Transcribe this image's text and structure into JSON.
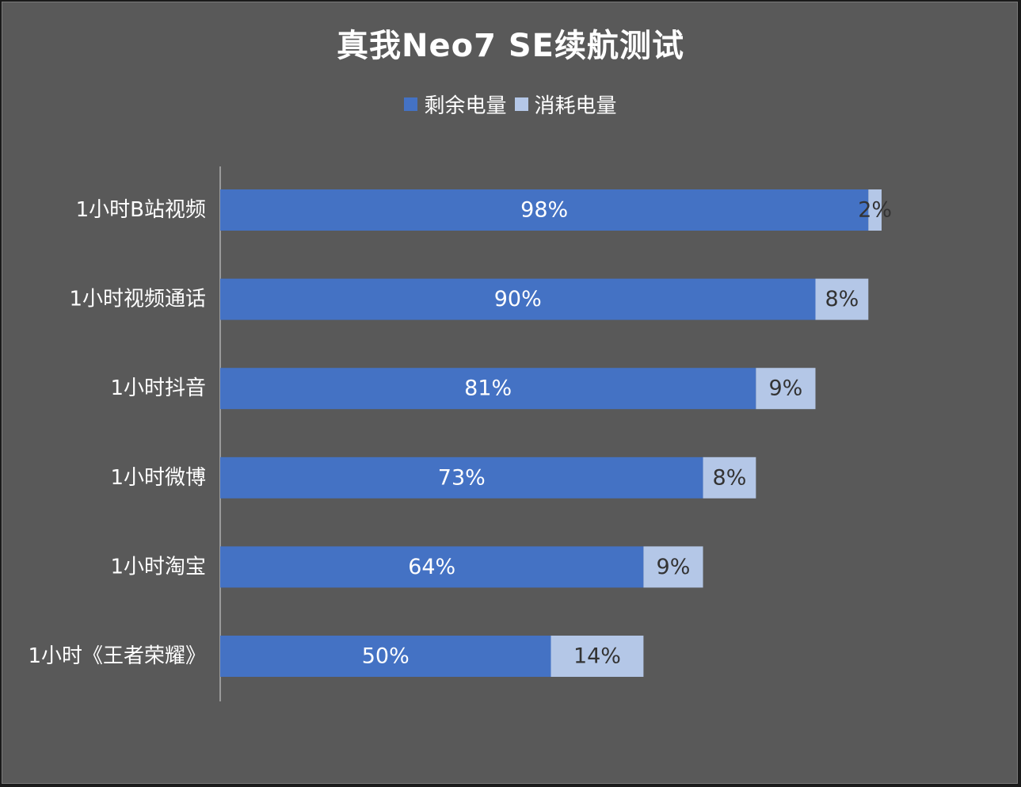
{
  "chart_data": {
    "type": "bar",
    "orientation": "horizontal",
    "stacked": true,
    "title": "真我Neo7 SE续航测试",
    "categories": [
      "1小时B站视频",
      "1小时视频通话",
      "1小时抖音",
      "1小时微博",
      "1小时淘宝",
      "1小时《王者荣耀》"
    ],
    "series": [
      {
        "name": "剩余电量",
        "values": [
          98,
          90,
          81,
          73,
          64,
          50
        ],
        "labels": [
          "98%",
          "90%",
          "81%",
          "73%",
          "64%",
          "50%"
        ],
        "color": "#4472C4",
        "label_color": "#ffffff"
      },
      {
        "name": "消耗电量",
        "values": [
          2,
          8,
          9,
          8,
          9,
          14
        ],
        "labels": [
          "2%",
          "8%",
          "9%",
          "8%",
          "9%",
          "14%"
        ],
        "color": "#B4C7E7",
        "label_color": "#333333"
      }
    ],
    "xlim": [
      0,
      100
    ],
    "grid": false,
    "legend_position": "top",
    "background": "#595959"
  }
}
